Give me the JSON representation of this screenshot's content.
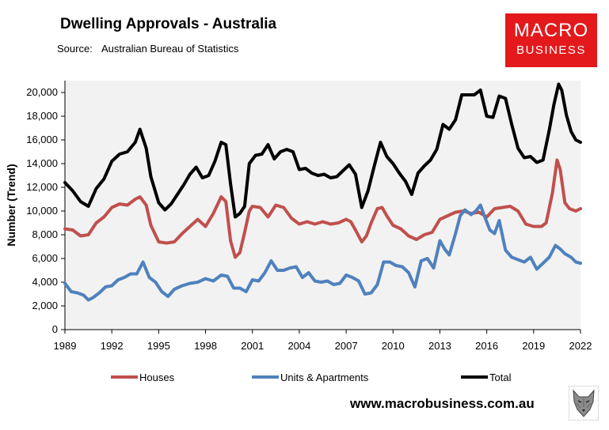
{
  "header": {
    "title": "Dwelling Approvals - Australia",
    "source_label": "Source:",
    "source_value": "Australian Bureau of Statistics"
  },
  "logo": {
    "line1": "MACRO",
    "line2": "BUSINESS",
    "color": "#e3191c"
  },
  "footer": {
    "website": "www.macrobusiness.com.au",
    "emblem_icon": "wolf-icon"
  },
  "chart_data": {
    "type": "line",
    "title": "Dwelling Approvals - Australia",
    "xlabel": "",
    "ylabel": "Number (Trend)",
    "xlim": [
      1989,
      2022
    ],
    "ylim": [
      0,
      21000
    ],
    "yticks": [
      0,
      2000,
      4000,
      6000,
      8000,
      10000,
      12000,
      14000,
      16000,
      18000,
      20000
    ],
    "ytick_labels": [
      "0",
      "2,000",
      "4,000",
      "6,000",
      "8,000",
      "10,000",
      "12,000",
      "14,000",
      "16,000",
      "18,000",
      "20,000"
    ],
    "xticks": [
      1989,
      1992,
      1995,
      1998,
      2001,
      2004,
      2007,
      2010,
      2013,
      2016,
      2019,
      2022
    ],
    "xtick_labels": [
      "1989",
      "1992",
      "1995",
      "1998",
      "2001",
      "2004",
      "2007",
      "2010",
      "2013",
      "2016",
      "2019",
      "2022"
    ],
    "legend_position": "bottom",
    "plot_background": "#f2f2f2",
    "series": [
      {
        "name": "Houses",
        "color": "#c0504d",
        "x": [
          1989.0,
          1989.5,
          1990.0,
          1990.5,
          1991.0,
          1991.5,
          1992.0,
          1992.5,
          1993.0,
          1993.5,
          1993.8,
          1994.2,
          1994.5,
          1995.0,
          1995.5,
          1996.0,
          1996.5,
          1997.0,
          1997.5,
          1998.0,
          1998.5,
          1999.0,
          1999.3,
          1999.6,
          1999.9,
          2000.2,
          2000.5,
          2000.8,
          2001.0,
          2001.5,
          2002.0,
          2002.5,
          2003.0,
          2003.5,
          2004.0,
          2004.5,
          2005.0,
          2005.5,
          2006.0,
          2006.5,
          2007.0,
          2007.3,
          2007.6,
          2008.0,
          2008.3,
          2008.6,
          2009.0,
          2009.3,
          2009.6,
          2010.0,
          2010.5,
          2011.0,
          2011.5,
          2012.0,
          2012.5,
          2013.0,
          2013.5,
          2014.0,
          2014.5,
          2015.0,
          2015.5,
          2016.0,
          2016.5,
          2017.0,
          2017.5,
          2018.0,
          2018.5,
          2019.0,
          2019.5,
          2019.8,
          2020.2,
          2020.5,
          2020.7,
          2021.0,
          2021.3,
          2021.7,
          2022.0
        ],
        "values": [
          8500,
          8400,
          7900,
          8000,
          9000,
          9500,
          10300,
          10600,
          10500,
          11000,
          11200,
          10500,
          8800,
          7400,
          7300,
          7400,
          8100,
          8700,
          9300,
          8700,
          9800,
          11200,
          10800,
          7500,
          6100,
          6500,
          8200,
          10000,
          10400,
          10300,
          9500,
          10500,
          10300,
          9400,
          8900,
          9100,
          8900,
          9100,
          8900,
          9000,
          9300,
          9100,
          8400,
          7400,
          7900,
          9000,
          10200,
          10300,
          9600,
          8800,
          8500,
          7900,
          7600,
          8000,
          8200,
          9300,
          9600,
          9900,
          10000,
          9800,
          9900,
          9500,
          10200,
          10300,
          10400,
          10000,
          8900,
          8700,
          8700,
          9000,
          11500,
          14300,
          13500,
          10700,
          10200,
          10000,
          10200
        ]
      },
      {
        "name": "Units & Apartments",
        "color": "#4f81bd",
        "x": [
          1989.0,
          1989.4,
          1989.8,
          1990.2,
          1990.5,
          1990.8,
          1991.2,
          1991.6,
          1992.0,
          1992.4,
          1992.8,
          1993.2,
          1993.6,
          1994.0,
          1994.4,
          1994.8,
          1995.2,
          1995.6,
          1996.0,
          1996.5,
          1997.0,
          1997.5,
          1998.0,
          1998.5,
          1999.0,
          1999.4,
          1999.8,
          2000.2,
          2000.6,
          2001.0,
          2001.4,
          2001.8,
          2002.2,
          2002.6,
          2003.0,
          2003.4,
          2003.8,
          2004.2,
          2004.6,
          2005.0,
          2005.4,
          2005.8,
          2006.2,
          2006.6,
          2007.0,
          2007.4,
          2007.8,
          2008.2,
          2008.6,
          2009.0,
          2009.4,
          2009.8,
          2010.2,
          2010.6,
          2011.0,
          2011.4,
          2011.8,
          2012.2,
          2012.6,
          2013.0,
          2013.3,
          2013.6,
          2014.0,
          2014.3,
          2014.6,
          2015.0,
          2015.3,
          2015.6,
          2015.9,
          2016.2,
          2016.5,
          2016.8,
          2017.2,
          2017.6,
          2018.0,
          2018.4,
          2018.8,
          2019.2,
          2019.6,
          2020.0,
          2020.4,
          2020.7,
          2021.0,
          2021.4,
          2021.7,
          2022.0
        ],
        "values": [
          3900,
          3200,
          3100,
          2900,
          2500,
          2700,
          3100,
          3600,
          3700,
          4200,
          4400,
          4700,
          4700,
          5700,
          4400,
          4000,
          3200,
          2800,
          3400,
          3700,
          3900,
          4000,
          4300,
          4100,
          4600,
          4500,
          3500,
          3500,
          3200,
          4200,
          4100,
          4800,
          5800,
          5000,
          5000,
          5200,
          5300,
          4400,
          4800,
          4100,
          4000,
          4100,
          3800,
          3900,
          4600,
          4400,
          4100,
          3000,
          3100,
          3800,
          5700,
          5700,
          5400,
          5300,
          4800,
          3600,
          5800,
          6000,
          5200,
          7500,
          6800,
          6300,
          8100,
          9600,
          10100,
          9700,
          10000,
          10500,
          9400,
          8400,
          8100,
          9200,
          6700,
          6100,
          5900,
          5700,
          6100,
          5100,
          5600,
          6100,
          7100,
          6800,
          6400,
          6100,
          5700,
          5600
        ]
      },
      {
        "name": "Total",
        "color": "#000000",
        "x": [
          1989.0,
          1989.5,
          1990.0,
          1990.5,
          1991.0,
          1991.5,
          1992.0,
          1992.5,
          1993.0,
          1993.5,
          1993.8,
          1994.2,
          1994.5,
          1995.0,
          1995.4,
          1995.8,
          1996.2,
          1996.6,
          1997.0,
          1997.4,
          1997.8,
          1998.2,
          1998.6,
          1999.0,
          1999.3,
          1999.6,
          1999.9,
          2000.2,
          2000.5,
          2000.8,
          2001.2,
          2001.6,
          2002.0,
          2002.4,
          2002.8,
          2003.2,
          2003.6,
          2004.0,
          2004.4,
          2004.8,
          2005.2,
          2005.6,
          2006.0,
          2006.4,
          2006.8,
          2007.2,
          2007.6,
          2008.0,
          2008.4,
          2008.8,
          2009.2,
          2009.6,
          2010.0,
          2010.4,
          2010.8,
          2011.2,
          2011.6,
          2012.0,
          2012.4,
          2012.8,
          2013.2,
          2013.6,
          2014.0,
          2014.4,
          2014.8,
          2015.2,
          2015.6,
          2016.0,
          2016.4,
          2016.8,
          2017.2,
          2017.6,
          2018.0,
          2018.4,
          2018.8,
          2019.2,
          2019.6,
          2020.0,
          2020.3,
          2020.6,
          2020.8,
          2021.1,
          2021.4,
          2021.7,
          2022.0
        ],
        "values": [
          12400,
          11700,
          10800,
          10400,
          11900,
          12700,
          14200,
          14800,
          15000,
          15800,
          16900,
          15300,
          12900,
          10700,
          10100,
          10600,
          11400,
          12200,
          13100,
          13700,
          12800,
          13000,
          14200,
          15800,
          15600,
          12300,
          9500,
          9800,
          10400,
          14000,
          14700,
          14800,
          15600,
          14400,
          15000,
          15200,
          15000,
          13500,
          13600,
          13200,
          13000,
          13100,
          12800,
          12900,
          13400,
          13900,
          13100,
          10300,
          11700,
          13800,
          15800,
          14600,
          14000,
          13200,
          12500,
          11400,
          13200,
          13800,
          14300,
          15200,
          17300,
          16900,
          17700,
          19800,
          19800,
          19800,
          20200,
          18000,
          17900,
          19700,
          19500,
          17300,
          15300,
          14500,
          14600,
          14100,
          14300,
          16800,
          19000,
          20700,
          20200,
          18100,
          16700,
          16000,
          15800
        ]
      }
    ]
  }
}
